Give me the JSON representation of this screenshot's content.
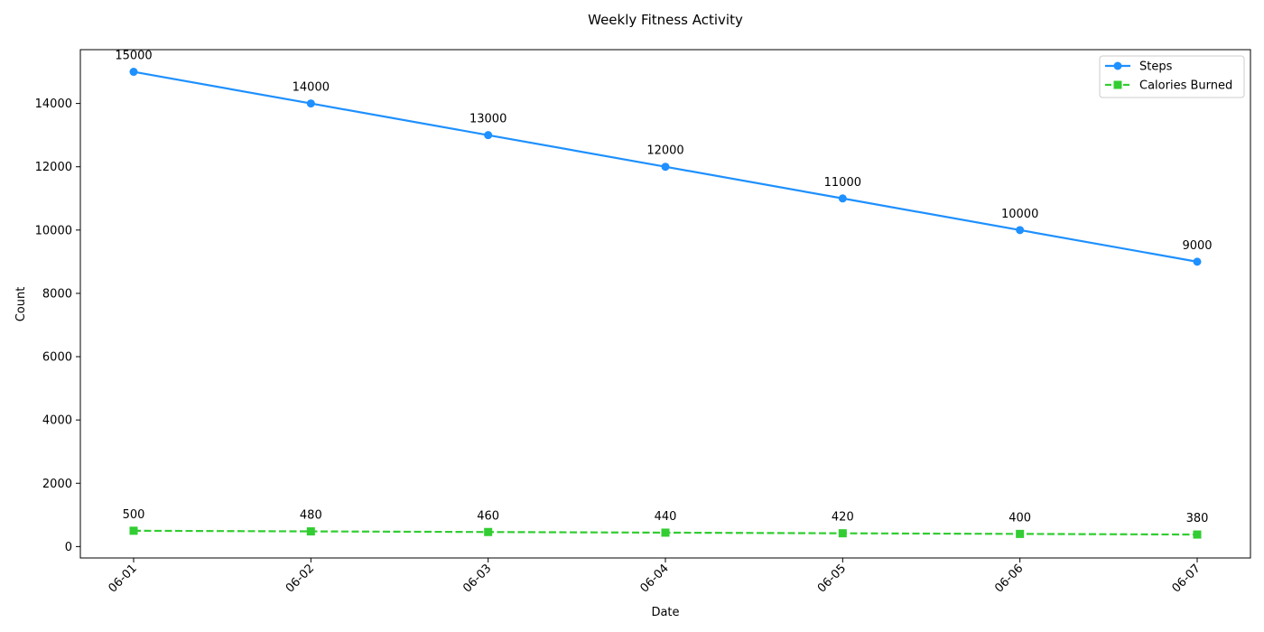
{
  "chart_data": {
    "type": "line",
    "title": "Weekly Fitness Activity",
    "xlabel": "Date",
    "ylabel": "Count",
    "categories": [
      "06-01",
      "06-02",
      "06-03",
      "06-04",
      "06-05",
      "06-06",
      "06-07"
    ],
    "ylim": [
      -360,
      15700
    ],
    "yticks": [
      0,
      2000,
      4000,
      6000,
      8000,
      10000,
      12000,
      14000
    ],
    "grid": false,
    "legend": "top-right",
    "series": [
      {
        "name": "Steps",
        "values": [
          15000,
          14000,
          13000,
          12000,
          11000,
          10000,
          9000
        ],
        "color": "#1e90ff",
        "marker": "circle",
        "line_style": "solid"
      },
      {
        "name": "Calories Burned",
        "values": [
          500,
          480,
          460,
          440,
          420,
          400,
          380
        ],
        "color": "#32cd32",
        "marker": "square",
        "line_style": "dashed"
      }
    ]
  }
}
